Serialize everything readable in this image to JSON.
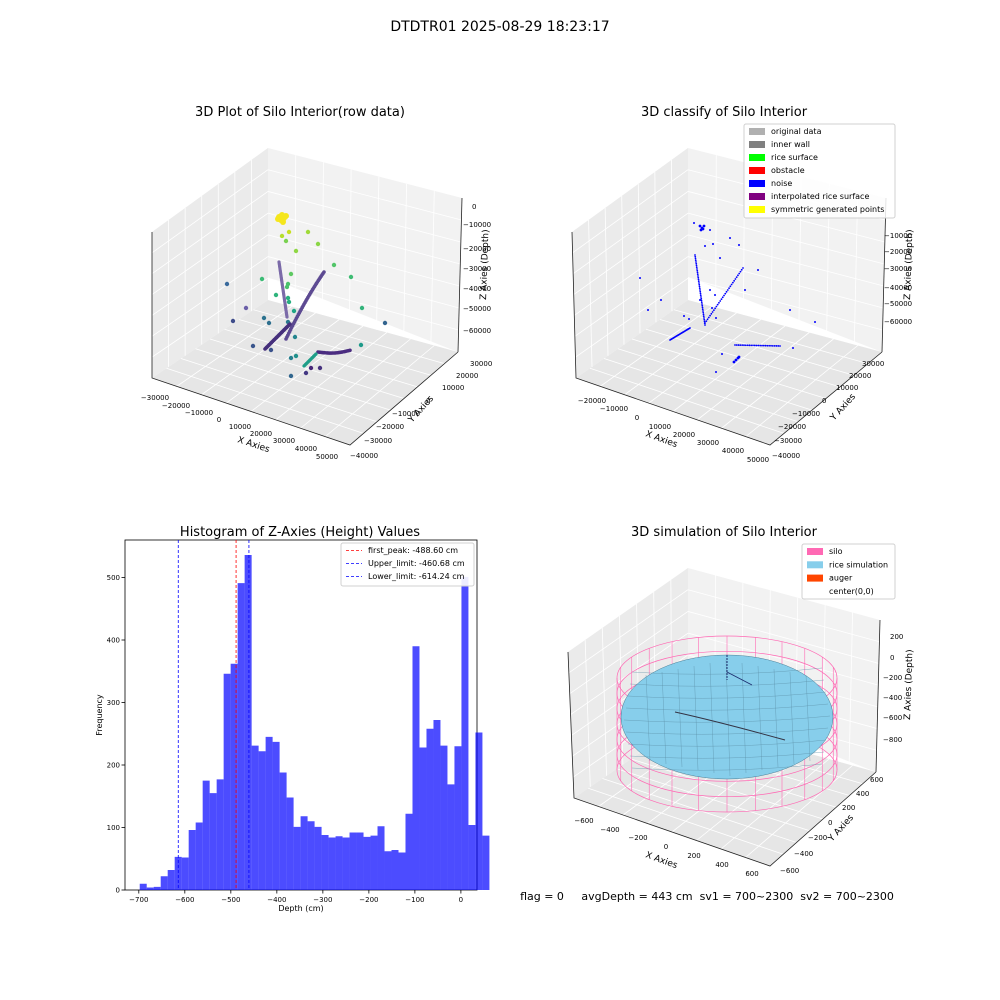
{
  "suptitle": "DTDTR01 2025-08-29 18:23:17",
  "panel_raw": {
    "title": "3D Plot of Silo Interior(row data)",
    "xlabel": "X Axies",
    "ylabel": "Y Axies",
    "zlabel": "Z Axies (Depth)",
    "xticks": [
      "−30000",
      "−20000",
      "−10000",
      "0",
      "10000",
      "20000",
      "30000",
      "40000",
      "50000"
    ],
    "yticks": [
      "30000",
      "20000",
      "10000",
      "0",
      "−10000",
      "−20000",
      "−30000",
      "−40000"
    ],
    "zticks": [
      "0",
      "−10000",
      "−20000",
      "−30000",
      "−40000",
      "−50000",
      "−60000"
    ]
  },
  "panel_classify": {
    "title": "3D classify of Silo Interior",
    "xlabel": "X Axies",
    "ylabel": "Y Axies",
    "zlabel": "Z Axies (Depth)",
    "xticks": [
      "−20000",
      "−10000",
      "0",
      "10000",
      "20000",
      "30000",
      "40000",
      "50000"
    ],
    "yticks": [
      "30000",
      "20000",
      "10000",
      "0",
      "−10000",
      "−20000",
      "−30000",
      "−40000"
    ],
    "zticks": [
      "−10000",
      "−20000",
      "−30000",
      "−40000",
      "−50000",
      "−60000"
    ],
    "legend": [
      {
        "label": "original data",
        "color": "#b0b0b0"
      },
      {
        "label": "inner wall",
        "color": "#808080"
      },
      {
        "label": "rice surface",
        "color": "#00ff00"
      },
      {
        "label": "obstacle",
        "color": "#ff0000"
      },
      {
        "label": "noise",
        "color": "#0000ff"
      },
      {
        "label": "interpolated rice surface",
        "color": "#800080"
      },
      {
        "label": "symmetric generated points",
        "color": "#ffff00"
      }
    ]
  },
  "panel_sim": {
    "title": "3D simulation of Silo Interior",
    "xlabel": "X Axies",
    "ylabel": "Y Axies",
    "zlabel": "Z Axies (Depth)",
    "xticks": [
      "−600",
      "−400",
      "−200",
      "0",
      "200",
      "400",
      "600"
    ],
    "yticks": [
      "600",
      "400",
      "200",
      "0",
      "−200",
      "−400",
      "−600"
    ],
    "zticks": [
      "200",
      "0",
      "−200",
      "−400",
      "−600",
      "−800"
    ],
    "legend": [
      {
        "label": "silo",
        "color": "#ff69b4"
      },
      {
        "label": "rice simulation",
        "color": "#87ceeb"
      },
      {
        "label": "auger",
        "color": "#ff4500"
      },
      {
        "label": "center(0,0)",
        "color": ""
      }
    ],
    "footer": "flag = 0     avgDepth = 443 cm  sv1 = 700~2300  sv2 = 700~2300"
  },
  "chart_data": [
    {
      "type": "bar",
      "title": "Histogram of Z-Axies (Height) Values",
      "xlabel": "Depth (cm)",
      "ylabel": "Frequency",
      "xlim": [
        -730,
        35
      ],
      "ylim": [
        0,
        560
      ],
      "xticks": [
        -700,
        -600,
        -500,
        -400,
        -300,
        -200,
        -100,
        0
      ],
      "yticks": [
        0,
        100,
        200,
        300,
        400,
        500
      ],
      "bin_width": 15.2,
      "bin_start": -698,
      "bar_color": "#0000ff",
      "values": [
        10,
        4,
        5,
        22,
        32,
        53,
        52,
        96,
        108,
        175,
        155,
        177,
        346,
        362,
        491,
        536,
        231,
        222,
        245,
        237,
        188,
        148,
        101,
        118,
        110,
        101,
        88,
        84,
        86,
        84,
        92,
        92,
        85,
        87,
        102,
        62,
        64,
        60,
        122,
        390,
        228,
        258,
        272,
        231,
        169,
        230,
        501,
        104,
        252,
        87
      ],
      "lines": [
        {
          "label": "first_peak: -488.60 cm",
          "x": -488.6,
          "color": "#ff0000"
        },
        {
          "label": "Upper_limit: -460.68 cm",
          "x": -460.68,
          "color": "#0000ff"
        },
        {
          "label": "Lower_limit: -614.24 cm",
          "x": -614.24,
          "color": "#0000ff"
        }
      ]
    }
  ]
}
